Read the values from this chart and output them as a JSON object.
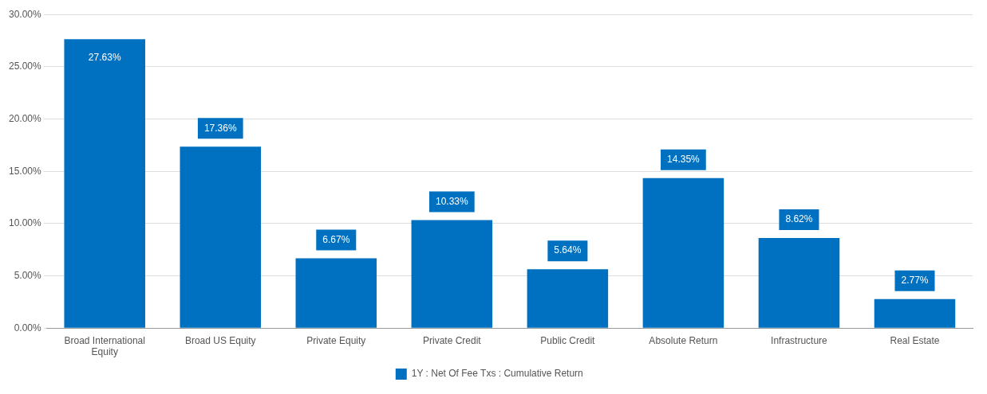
{
  "chart_data": {
    "type": "bar",
    "categories": [
      "Broad International Equity",
      "Broad US Equity",
      "Private Equity",
      "Private Credit",
      "Public Credit",
      "Absolute Return",
      "Infrastructure",
      "Real Estate"
    ],
    "series": [
      {
        "name": "1Y : Net Of Fee Txs : Cumulative Return",
        "color": "#0070c0",
        "values": [
          27.63,
          17.36,
          6.67,
          10.33,
          5.64,
          14.35,
          8.62,
          2.77
        ],
        "value_labels": [
          "27.63%",
          "17.36%",
          "6.67%",
          "10.33%",
          "5.64%",
          "14.35%",
          "8.62%",
          "2.77%"
        ]
      }
    ],
    "ylim": [
      0,
      30
    ],
    "yticks": [
      {
        "value": 0,
        "label": "0.00%"
      },
      {
        "value": 5,
        "label": "5.00%"
      },
      {
        "value": 10,
        "label": "10.00%"
      },
      {
        "value": 15,
        "label": "15.00%"
      },
      {
        "value": 20,
        "label": "20.00%"
      },
      {
        "value": 25,
        "label": "25.00%"
      },
      {
        "value": 30,
        "label": "30.00%"
      }
    ],
    "grid": "y",
    "legend": "bottom"
  }
}
